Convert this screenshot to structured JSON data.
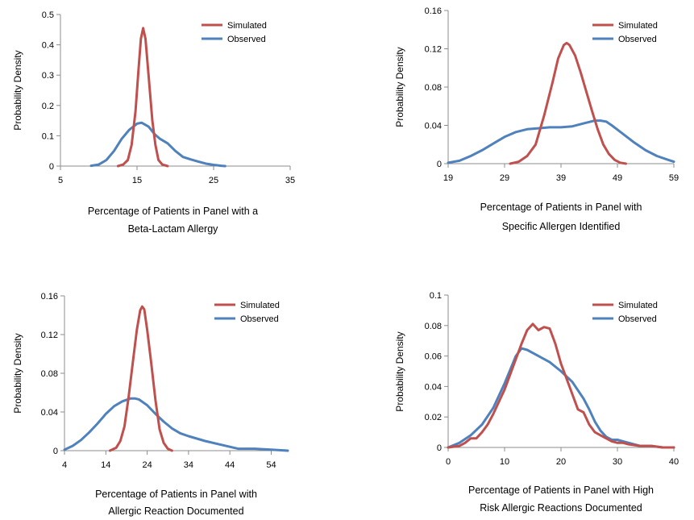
{
  "colors": {
    "simulated": "#c0504d",
    "observed": "#4f81bd",
    "axis": "#8c8c8c"
  },
  "chart_data": [
    {
      "type": "line",
      "ylabel": "Probability Density",
      "xlabel": [
        "Percentage of Patients in Panel with a",
        "Beta-Lactam Allergy"
      ],
      "xlim": [
        5,
        35
      ],
      "ylim": [
        0,
        0.5
      ],
      "xticks": [
        5,
        15,
        25,
        35
      ],
      "xtick_labels": [
        "5",
        "15",
        "25",
        "35"
      ],
      "yticks": [
        0,
        0.1,
        0.2,
        0.3,
        0.4,
        0.5
      ],
      "ytick_labels": [
        "0",
        "0.1",
        "0.2",
        "0.3",
        "0.4",
        "0.5"
      ],
      "legend": "top-right",
      "grid": false,
      "series": [
        {
          "name": "Simulated",
          "x": [
            12.5,
            13.2,
            13.8,
            14.3,
            14.8,
            15.2,
            15.5,
            15.8,
            16.1,
            16.5,
            17.0,
            17.4,
            17.8,
            18.3,
            19.0
          ],
          "y": [
            0,
            0.005,
            0.02,
            0.07,
            0.18,
            0.32,
            0.42,
            0.455,
            0.42,
            0.3,
            0.15,
            0.07,
            0.02,
            0.005,
            0
          ]
        },
        {
          "name": "Observed",
          "x": [
            9.0,
            10.0,
            11.0,
            12.0,
            13.0,
            14.0,
            15.0,
            15.6,
            16.5,
            17.3,
            18.0,
            19.0,
            20.0,
            21.0,
            22.0,
            23.0,
            24.0,
            25.0,
            26.0,
            26.5
          ],
          "y": [
            0.001,
            0.005,
            0.02,
            0.05,
            0.09,
            0.12,
            0.14,
            0.143,
            0.13,
            0.105,
            0.09,
            0.075,
            0.05,
            0.03,
            0.022,
            0.015,
            0.008,
            0.004,
            0.001,
            0
          ]
        }
      ]
    },
    {
      "type": "line",
      "ylabel": "Probability Density",
      "xlabel": [
        "Percentage of Patients in Panel with",
        "Specific Allergen Identified"
      ],
      "xlim": [
        19,
        59
      ],
      "ylim": [
        0,
        0.16
      ],
      "xticks": [
        19,
        29,
        39,
        49,
        59
      ],
      "xtick_labels": [
        "19",
        "29",
        "39",
        "49",
        "59"
      ],
      "yticks": [
        0,
        0.04,
        0.08,
        0.12,
        0.16
      ],
      "ytick_labels": [
        "0",
        "0.04",
        "0.08",
        "0.12",
        "0.16"
      ],
      "legend": "top-right",
      "grid": false,
      "series": [
        {
          "name": "Simulated",
          "x": [
            30.0,
            31.5,
            33.0,
            34.5,
            36.0,
            37.5,
            38.5,
            39.5,
            40.0,
            40.5,
            41.5,
            42.5,
            43.5,
            44.5,
            45.5,
            46.5,
            47.5,
            48.5,
            49.5,
            50.5
          ],
          "y": [
            0,
            0.002,
            0.008,
            0.02,
            0.05,
            0.085,
            0.11,
            0.124,
            0.126,
            0.124,
            0.113,
            0.095,
            0.075,
            0.055,
            0.036,
            0.02,
            0.01,
            0.004,
            0.001,
            0
          ]
        },
        {
          "name": "Observed",
          "x": [
            19,
            21,
            23,
            25,
            27,
            29,
            31,
            33,
            35,
            37,
            39,
            41,
            43,
            45,
            46,
            47,
            48,
            50,
            52,
            54,
            56,
            58,
            59
          ],
          "y": [
            0.001,
            0.003,
            0.008,
            0.014,
            0.021,
            0.028,
            0.033,
            0.036,
            0.037,
            0.038,
            0.038,
            0.039,
            0.042,
            0.045,
            0.045,
            0.044,
            0.04,
            0.031,
            0.022,
            0.014,
            0.008,
            0.004,
            0.002
          ]
        }
      ]
    },
    {
      "type": "line",
      "ylabel": "Probability Density",
      "xlabel": [
        "Percentage of Patients in Panel with",
        "Allergic Reaction Documented"
      ],
      "xlim": [
        4,
        58
      ],
      "ylim": [
        0,
        0.16
      ],
      "xticks": [
        4,
        14,
        24,
        34,
        44,
        54
      ],
      "xtick_labels": [
        "4",
        "14",
        "24",
        "34",
        "44",
        "54"
      ],
      "yticks": [
        0,
        0.04,
        0.08,
        0.12,
        0.16
      ],
      "ytick_labels": [
        "0",
        "0.04",
        "0.08",
        "0.12",
        "0.16"
      ],
      "legend": "top-right",
      "grid": false,
      "series": [
        {
          "name": "Simulated",
          "x": [
            15.0,
            16.5,
            17.5,
            18.5,
            19.5,
            20.5,
            21.5,
            22.3,
            22.8,
            23.3,
            24.0,
            25.0,
            26.0,
            27.0,
            28.0,
            29.0,
            30.0
          ],
          "y": [
            0,
            0.003,
            0.01,
            0.025,
            0.055,
            0.09,
            0.125,
            0.145,
            0.149,
            0.146,
            0.125,
            0.09,
            0.052,
            0.022,
            0.008,
            0.002,
            0
          ]
        },
        {
          "name": "Observed",
          "x": [
            4,
            6,
            8,
            10,
            12,
            14,
            16,
            18,
            20,
            21,
            22,
            24,
            26,
            28,
            30,
            32,
            34,
            38,
            42,
            46,
            50,
            54,
            58
          ],
          "y": [
            0.001,
            0.005,
            0.011,
            0.019,
            0.028,
            0.038,
            0.046,
            0.051,
            0.054,
            0.054,
            0.053,
            0.047,
            0.038,
            0.03,
            0.023,
            0.018,
            0.015,
            0.01,
            0.006,
            0.002,
            0.002,
            0.001,
            0
          ]
        }
      ]
    },
    {
      "type": "line",
      "ylabel": "Probability Density",
      "xlabel": [
        "Percentage of Patients in Panel with High",
        "Risk Allergic Reactions Documented"
      ],
      "xlim": [
        0,
        40
      ],
      "ylim": [
        0,
        0.1
      ],
      "xticks": [
        0,
        10,
        20,
        30,
        40
      ],
      "xtick_labels": [
        "0",
        "10",
        "20",
        "30",
        "40"
      ],
      "yticks": [
        0,
        0.02,
        0.04,
        0.06,
        0.08,
        0.1
      ],
      "ytick_labels": [
        "0",
        "0.02",
        "0.04",
        "0.06",
        "0.08",
        "0.1"
      ],
      "legend": "top-right",
      "grid": false,
      "series": [
        {
          "name": "Simulated",
          "x": [
            0,
            2,
            3,
            4,
            5,
            6,
            7,
            8,
            9,
            10,
            11,
            12,
            13,
            14,
            15,
            16,
            17,
            18,
            19,
            20,
            21,
            22,
            23,
            24,
            25,
            26,
            27,
            28,
            29,
            30,
            31,
            32,
            34,
            36,
            38,
            40
          ],
          "y": [
            0,
            0.001,
            0.003,
            0.006,
            0.006,
            0.01,
            0.015,
            0.022,
            0.03,
            0.038,
            0.048,
            0.058,
            0.068,
            0.077,
            0.081,
            0.077,
            0.079,
            0.078,
            0.068,
            0.055,
            0.045,
            0.035,
            0.025,
            0.023,
            0.015,
            0.01,
            0.008,
            0.006,
            0.004,
            0.003,
            0.003,
            0.002,
            0.001,
            0.001,
            0,
            0
          ]
        },
        {
          "name": "Observed",
          "x": [
            0,
            2,
            4,
            6,
            8,
            10,
            12,
            13,
            14,
            16,
            18,
            20,
            22,
            24,
            25,
            26,
            27,
            28,
            29,
            30,
            31,
            32,
            34,
            36,
            38,
            40
          ],
          "y": [
            0,
            0.003,
            0.008,
            0.015,
            0.026,
            0.042,
            0.06,
            0.065,
            0.064,
            0.06,
            0.056,
            0.05,
            0.043,
            0.032,
            0.025,
            0.017,
            0.011,
            0.007,
            0.005,
            0.005,
            0.004,
            0.003,
            0.001,
            0.001,
            0,
            0
          ]
        }
      ]
    }
  ]
}
